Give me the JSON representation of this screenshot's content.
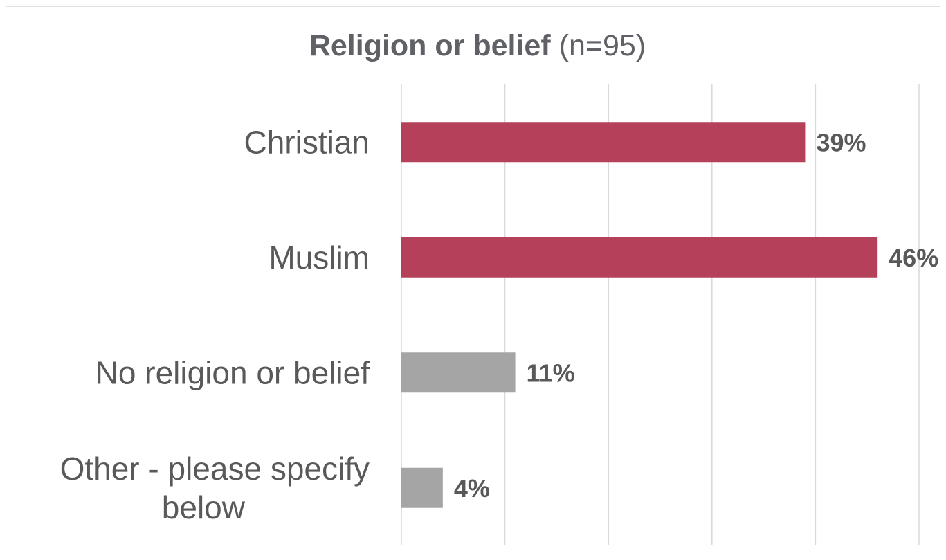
{
  "chart_data": {
    "type": "bar",
    "orientation": "horizontal",
    "title": "Religion or belief",
    "subtitle": "(n=95)",
    "categories": [
      "Christian",
      "Muslim",
      "No religion or belief",
      "Other - please specify below"
    ],
    "values": [
      39,
      46,
      11,
      4
    ],
    "data_labels": [
      "39%",
      "46%",
      "11%",
      "4%"
    ],
    "colors": [
      "#b5405a",
      "#b5405a",
      "#a5a5a5",
      "#a5a5a5"
    ],
    "xlim": [
      0,
      50
    ],
    "grid": true,
    "legend": "none"
  }
}
